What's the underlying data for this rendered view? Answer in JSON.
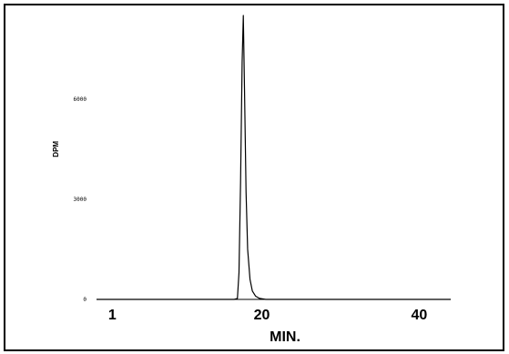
{
  "chart_data": {
    "type": "line",
    "title": "",
    "xlabel": "MIN.",
    "ylabel": "DPM",
    "x_ticks": [
      {
        "value": 1,
        "label": "1"
      },
      {
        "value": 20,
        "label": "20"
      },
      {
        "value": 40,
        "label": "40"
      }
    ],
    "y_ticks": [
      {
        "value": 0,
        "label": "0"
      },
      {
        "value": 3000,
        "label": "3000"
      },
      {
        "value": 6000,
        "label": "6000"
      }
    ],
    "xlim": [
      -1,
      44
    ],
    "ylim": [
      0,
      8500
    ],
    "grid": false,
    "series": [
      {
        "line_color": "#000000",
        "points": [
          [
            -1,
            0
          ],
          [
            16.5,
            0
          ],
          [
            16.9,
            30
          ],
          [
            17.1,
            800
          ],
          [
            17.3,
            3500
          ],
          [
            17.5,
            7100
          ],
          [
            17.65,
            8500
          ],
          [
            17.8,
            6300
          ],
          [
            18.0,
            3200
          ],
          [
            18.2,
            1500
          ],
          [
            18.5,
            600
          ],
          [
            18.8,
            250
          ],
          [
            19.2,
            100
          ],
          [
            19.7,
            30
          ],
          [
            20.5,
            0
          ],
          [
            44,
            0
          ]
        ]
      }
    ]
  }
}
